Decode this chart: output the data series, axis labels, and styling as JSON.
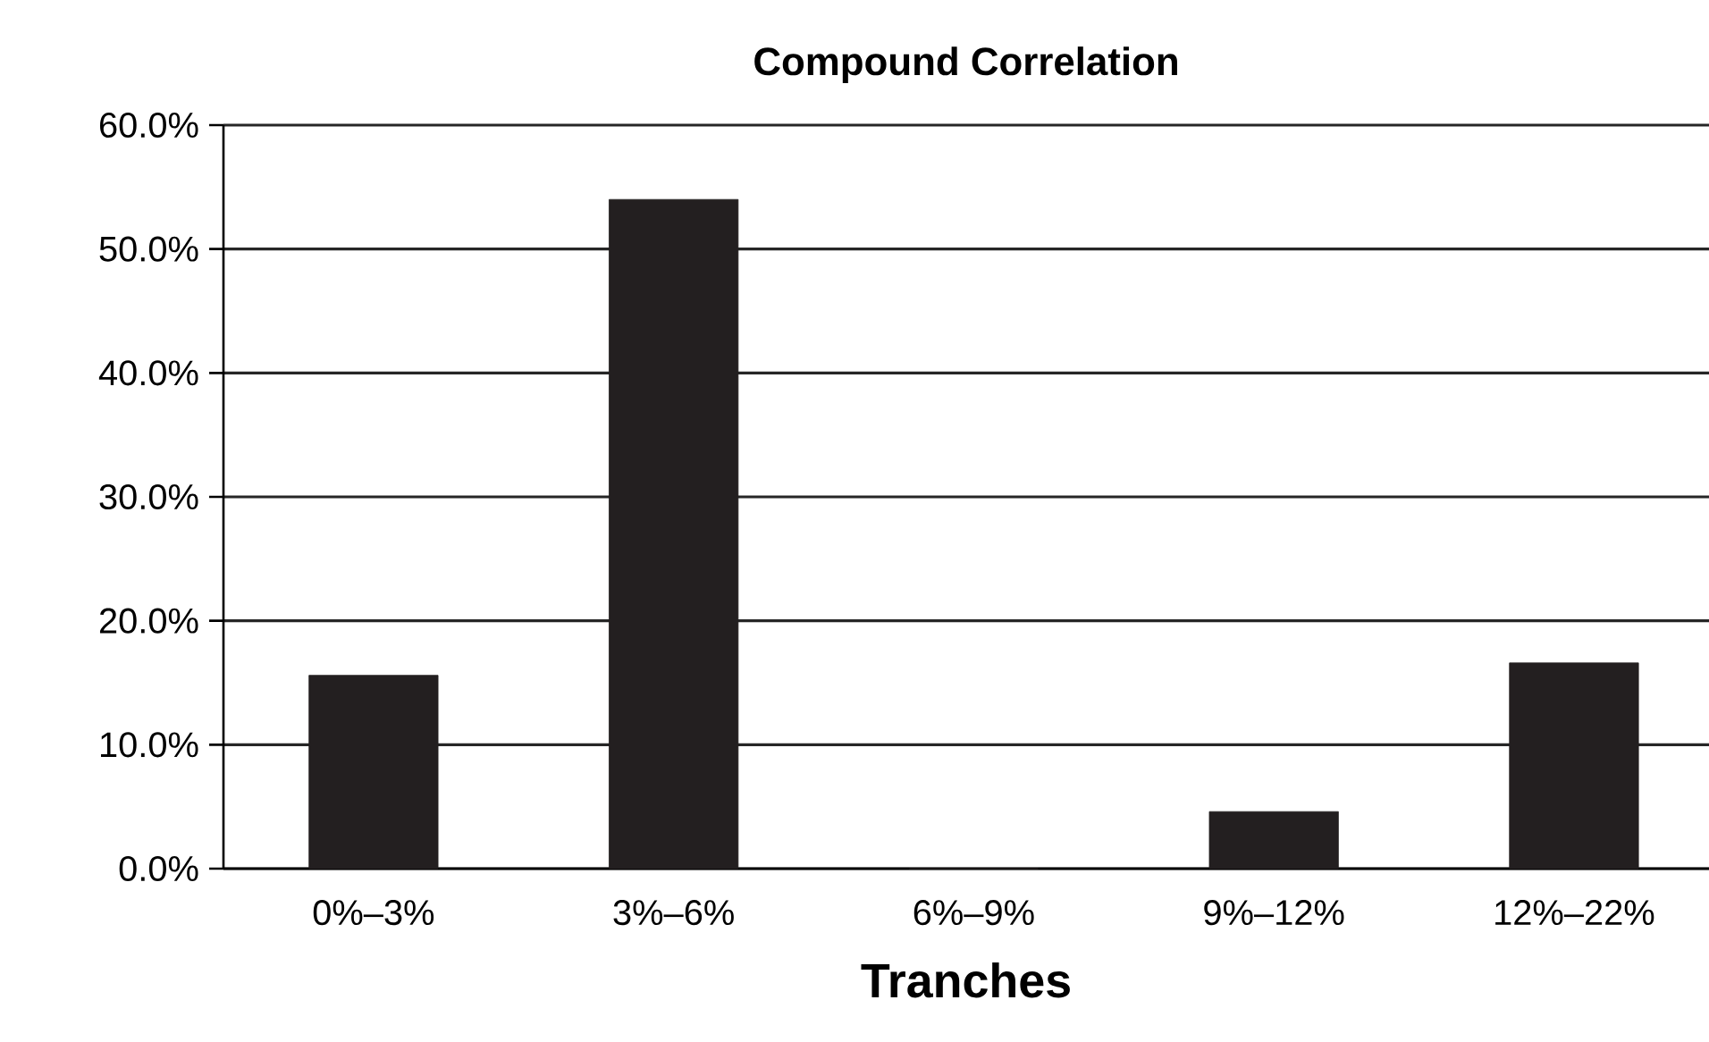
{
  "chart_data": {
    "type": "bar",
    "title": "Compound Correlation",
    "xlabel": "Tranches",
    "categories": [
      "0%–3%",
      "3%–6%",
      "6%–9%",
      "9%–12%",
      "12%–22%"
    ],
    "values": [
      15.6,
      54.0,
      0,
      4.6,
      16.6
    ],
    "color": "#231f20",
    "ylim": [
      0,
      60
    ],
    "yticks": [
      {
        "value": 0,
        "label": "0.0%"
      },
      {
        "value": 10,
        "label": "10.0%"
      },
      {
        "value": 20,
        "label": "20.0%"
      },
      {
        "value": 30,
        "label": "30.0%"
      },
      {
        "value": 40,
        "label": "40.0%"
      },
      {
        "value": 50,
        "label": "50.0%"
      },
      {
        "value": 60,
        "label": "60.0%"
      }
    ],
    "grid": "y"
  }
}
